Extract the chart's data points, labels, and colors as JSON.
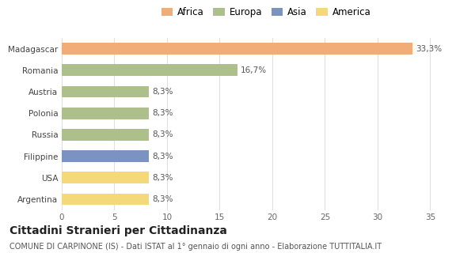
{
  "categories": [
    "Madagascar",
    "Romania",
    "Austria",
    "Polonia",
    "Russia",
    "Filippine",
    "USA",
    "Argentina"
  ],
  "values": [
    33.3,
    16.7,
    8.3,
    8.3,
    8.3,
    8.3,
    8.3,
    8.3
  ],
  "labels": [
    "33,3%",
    "16,7%",
    "8,3%",
    "8,3%",
    "8,3%",
    "8,3%",
    "8,3%",
    "8,3%"
  ],
  "colors": [
    "#F0AD78",
    "#ADBF8A",
    "#ADBF8A",
    "#ADBF8A",
    "#ADBF8A",
    "#7B93C0",
    "#F5D87A",
    "#F5D87A"
  ],
  "legend_labels": [
    "Africa",
    "Europa",
    "Asia",
    "America"
  ],
  "legend_colors": [
    "#F0AD78",
    "#ADBF8A",
    "#7B93C0",
    "#F5D87A"
  ],
  "xlim": [
    0,
    37
  ],
  "xticks": [
    0,
    5,
    10,
    15,
    20,
    25,
    30,
    35
  ],
  "title": "Cittadini Stranieri per Cittadinanza",
  "subtitle": "COMUNE DI CARPINONE (IS) - Dati ISTAT al 1° gennaio di ogni anno - Elaborazione TUTTITALIA.IT",
  "background_color": "#ffffff",
  "grid_color": "#e0e0e0",
  "title_fontsize": 10,
  "subtitle_fontsize": 7,
  "label_fontsize": 7.5,
  "tick_fontsize": 7.5,
  "legend_fontsize": 8.5
}
